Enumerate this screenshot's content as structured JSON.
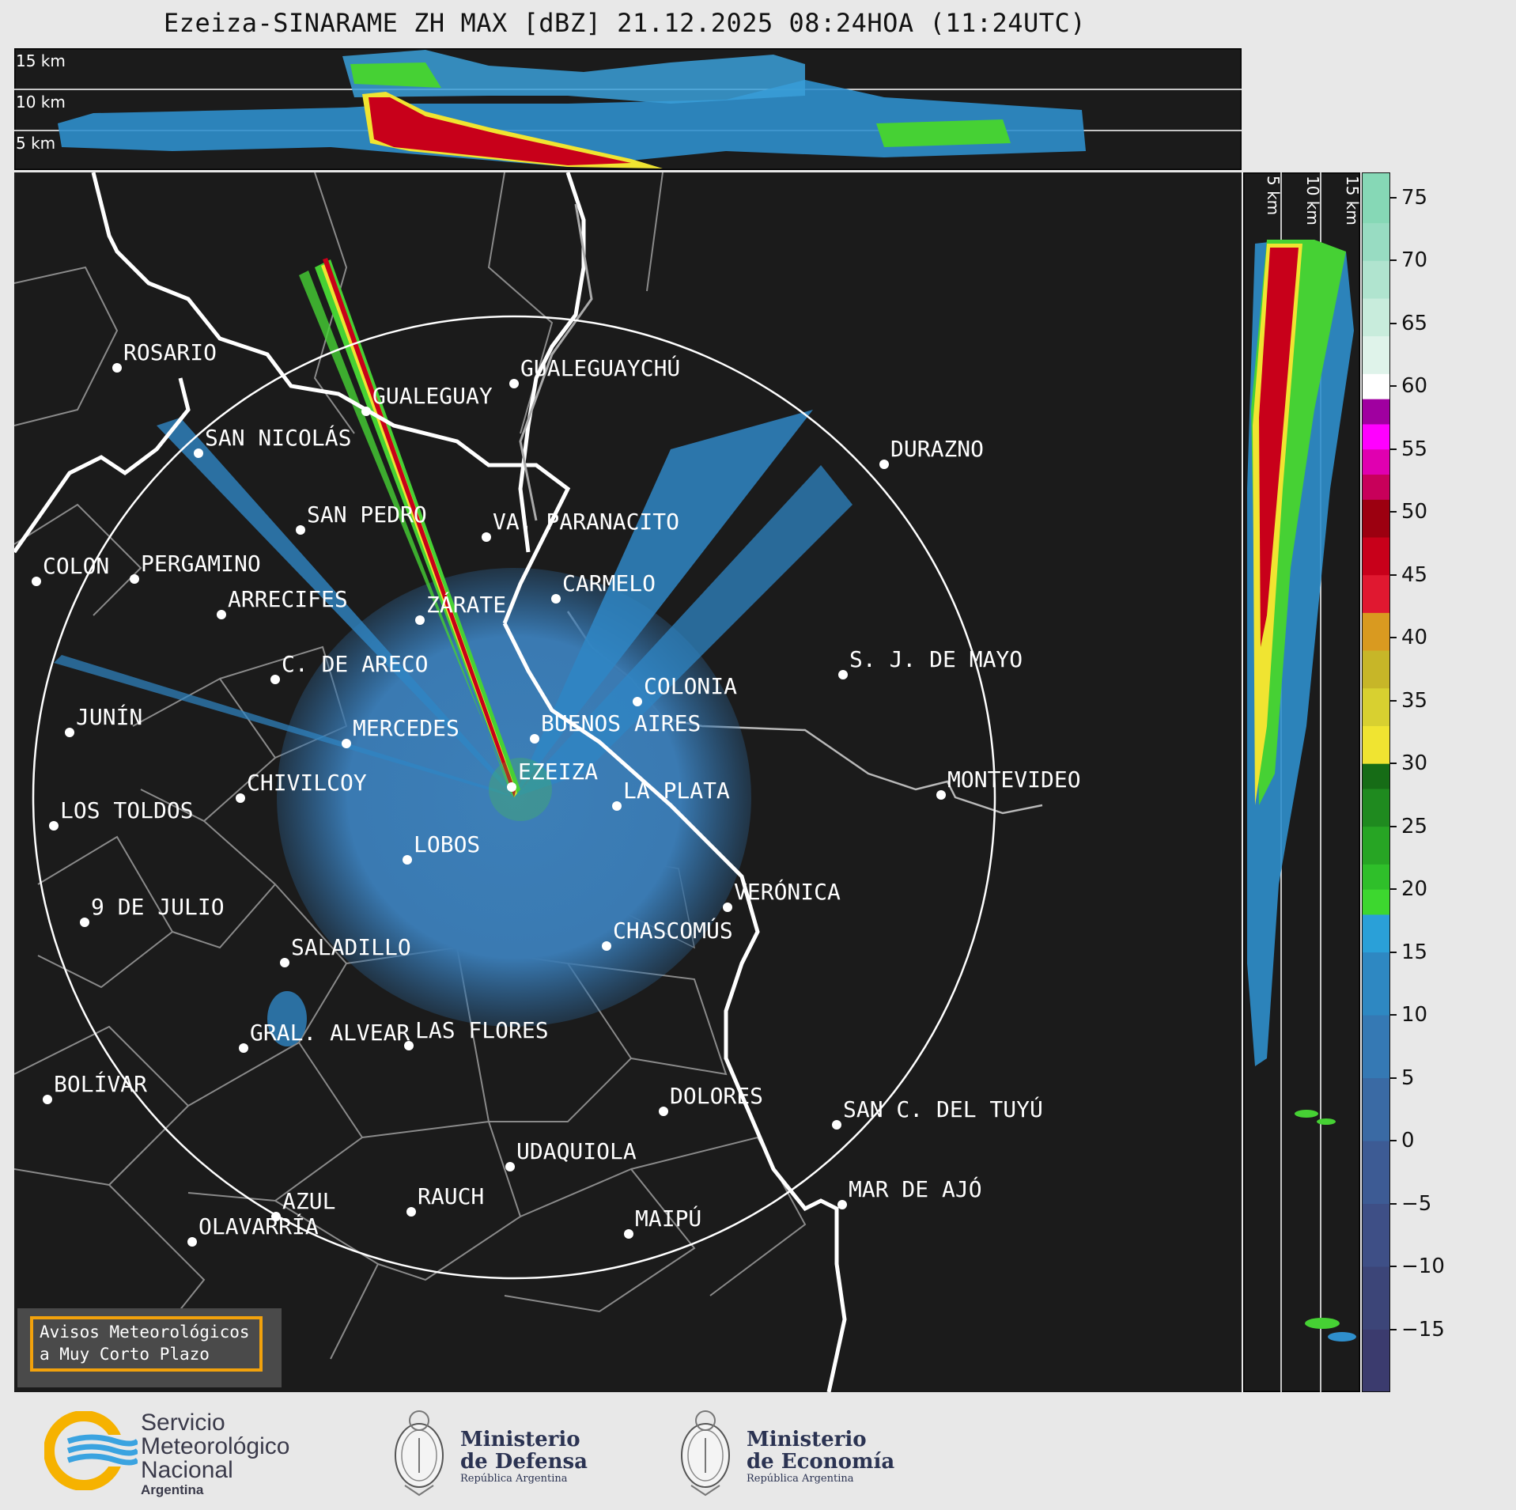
{
  "title": "Ezeiza-SINARAME ZH MAX [dBZ] 21.12.2025 08:24HOA (11:24UTC)",
  "top_panel": {
    "altitude_labels": [
      "15 km",
      "10 km",
      "5 km"
    ]
  },
  "right_panel": {
    "altitude_labels": [
      "5 km",
      "10 km",
      "15 km"
    ]
  },
  "colorbar": {
    "ticks": [
      "75",
      "70",
      "65",
      "60",
      "55",
      "50",
      "45",
      "40",
      "35",
      "30",
      "25",
      "20",
      "15",
      "10",
      "5",
      "0",
      "−5",
      "−10",
      "−15"
    ],
    "range": [
      -20,
      77
    ],
    "colors": {
      "bg_map": "#1b1b1b",
      "weak_echo": "#2f8fcc",
      "ring": "#ffffff",
      "border": "#8a8a8a",
      "coast": "#ffffff",
      "orange_box": "#f2a20c"
    }
  },
  "cities": [
    {
      "name": "ROSARIO"
    },
    {
      "name": "GUALEGUAYCHÚ"
    },
    {
      "name": "GUALEGUAY"
    },
    {
      "name": "SAN NICOLÁS"
    },
    {
      "name": "DURAZNO"
    },
    {
      "name": "SAN PEDRO"
    },
    {
      "name": "VA. PARANACITO"
    },
    {
      "name": "COLON"
    },
    {
      "name": "PERGAMINO"
    },
    {
      "name": "CARMELO"
    },
    {
      "name": "ARRECIFES"
    },
    {
      "name": "ZÁRATE"
    },
    {
      "name": "C. DE ARECO"
    },
    {
      "name": "S. J. DE MAYO"
    },
    {
      "name": "COLONIA"
    },
    {
      "name": "JUNÍN"
    },
    {
      "name": "BUENOS AIRES"
    },
    {
      "name": "MERCEDES"
    },
    {
      "name": "EZEIZA"
    },
    {
      "name": "MONTEVIDEO"
    },
    {
      "name": "CHIVILCOY"
    },
    {
      "name": "LA PLATA"
    },
    {
      "name": "LOS TOLDOS"
    },
    {
      "name": "LOBOS"
    },
    {
      "name": "VERÓNICA"
    },
    {
      "name": "9 DE JULIO"
    },
    {
      "name": "CHASCOMÚS"
    },
    {
      "name": "SALADILLO"
    },
    {
      "name": "GRAL. ALVEAR"
    },
    {
      "name": "LAS FLORES"
    },
    {
      "name": "BOLÍVAR"
    },
    {
      "name": "DOLORES"
    },
    {
      "name": "SAN C. DEL TUYÚ"
    },
    {
      "name": "UDAQUIOLA"
    },
    {
      "name": "MAR DE AJÓ"
    },
    {
      "name": "AZUL"
    },
    {
      "name": "RAUCH"
    },
    {
      "name": "OLAVARRÍA"
    },
    {
      "name": "MAIPÚ"
    }
  ],
  "avisos": {
    "line1": "Avisos Meteorológicos",
    "line2": "a Muy Corto Plazo"
  },
  "footer": {
    "smn": {
      "l1": "Servicio",
      "l2": "Meteorológico",
      "l3": "Nacional",
      "sub": "Argentina"
    },
    "defensa": {
      "l1": "Ministerio",
      "l2": "de Defensa",
      "sub": "República Argentina"
    },
    "economia": {
      "l1": "Ministerio",
      "l2": "de Economía",
      "sub": "República Argentina"
    }
  }
}
